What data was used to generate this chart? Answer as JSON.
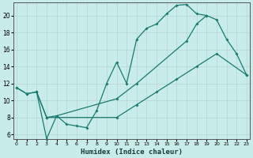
{
  "xlabel": "Humidex (Indice chaleur)",
  "bg_color": "#c8ecea",
  "grid_color": "#d0dede",
  "line_color": "#1a7a6e",
  "xlim": [
    -0.3,
    23.3
  ],
  "ylim": [
    5.5,
    21.5
  ],
  "yticks": [
    6,
    8,
    10,
    12,
    14,
    16,
    18,
    20
  ],
  "xticks": [
    0,
    1,
    2,
    3,
    4,
    5,
    6,
    7,
    8,
    9,
    10,
    11,
    12,
    13,
    14,
    15,
    16,
    17,
    18,
    19,
    20,
    21,
    22,
    23
  ],
  "line1_x": [
    0,
    1,
    2,
    3,
    4,
    5,
    6,
    7,
    8,
    9,
    10,
    11,
    12,
    13,
    14,
    15,
    16,
    17,
    18,
    19
  ],
  "line1_y": [
    11.5,
    10.8,
    11.0,
    8.0,
    8.2,
    7.2,
    7.0,
    6.8,
    8.8,
    12.0,
    14.5,
    12.0,
    17.2,
    18.5,
    19.0,
    20.2,
    21.2,
    21.3,
    20.2,
    20.0
  ],
  "line2_x": [
    0,
    1,
    2,
    3,
    4,
    10,
    12,
    17,
    18,
    19,
    20,
    21,
    22,
    23
  ],
  "line2_y": [
    11.5,
    10.8,
    11.0,
    5.5,
    8.2,
    10.2,
    12.0,
    17.0,
    19.0,
    20.0,
    19.5,
    17.2,
    15.5,
    13.0
  ],
  "line3_x": [
    2,
    3,
    10,
    12,
    14,
    16,
    18,
    20,
    23
  ],
  "line3_y": [
    11.0,
    8.0,
    8.0,
    9.5,
    11.0,
    12.5,
    14.0,
    15.5,
    13.0
  ]
}
